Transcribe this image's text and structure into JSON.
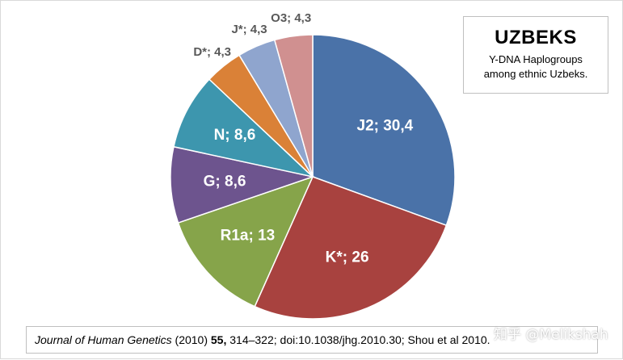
{
  "chart_data": {
    "type": "pie",
    "title": "UZBEKS",
    "subtitle_lines": [
      "Y-DNA Haplogroups",
      "among ethnic  Uzbeks."
    ],
    "slices": [
      {
        "label": "J2; 30,4",
        "name": "J2",
        "value": 30.4,
        "color": "#4a72a8",
        "label_pos": "inside"
      },
      {
        "label": "K*; 26",
        "name": "K*",
        "value": 26,
        "color": "#a8423f",
        "label_pos": "inside"
      },
      {
        "label": "R1a; 13",
        "name": "R1a",
        "value": 13,
        "color": "#86a44a",
        "label_pos": "inside"
      },
      {
        "label": "G; 8,6",
        "name": "G",
        "value": 8.6,
        "color": "#6d548e",
        "label_pos": "inside"
      },
      {
        "label": "N; 8,6",
        "name": "N",
        "value": 8.6,
        "color": "#3d96ae",
        "label_pos": "inside"
      },
      {
        "label": "D*; 4,3",
        "name": "D*",
        "value": 4.3,
        "color": "#da8137",
        "label_pos": "outside"
      },
      {
        "label": "J*; 4,3",
        "name": "J*",
        "value": 4.3,
        "color": "#8fa5ce",
        "label_pos": "outside"
      },
      {
        "label": "O3; 4,3",
        "name": "O3",
        "value": 4.3,
        "color": "#d09090",
        "label_pos": "outside"
      }
    ],
    "start_angle": "12 o'clock",
    "direction": "clockwise",
    "legend": "none"
  },
  "citation": {
    "journal": "Journal of Human Genetics",
    "year": " (2010) ",
    "volume": "55,",
    "rest": " 314–322;  doi:10.1038/jhg.2010.30;  Shou et al 2010."
  },
  "watermark": "知乎 @Melikshah"
}
